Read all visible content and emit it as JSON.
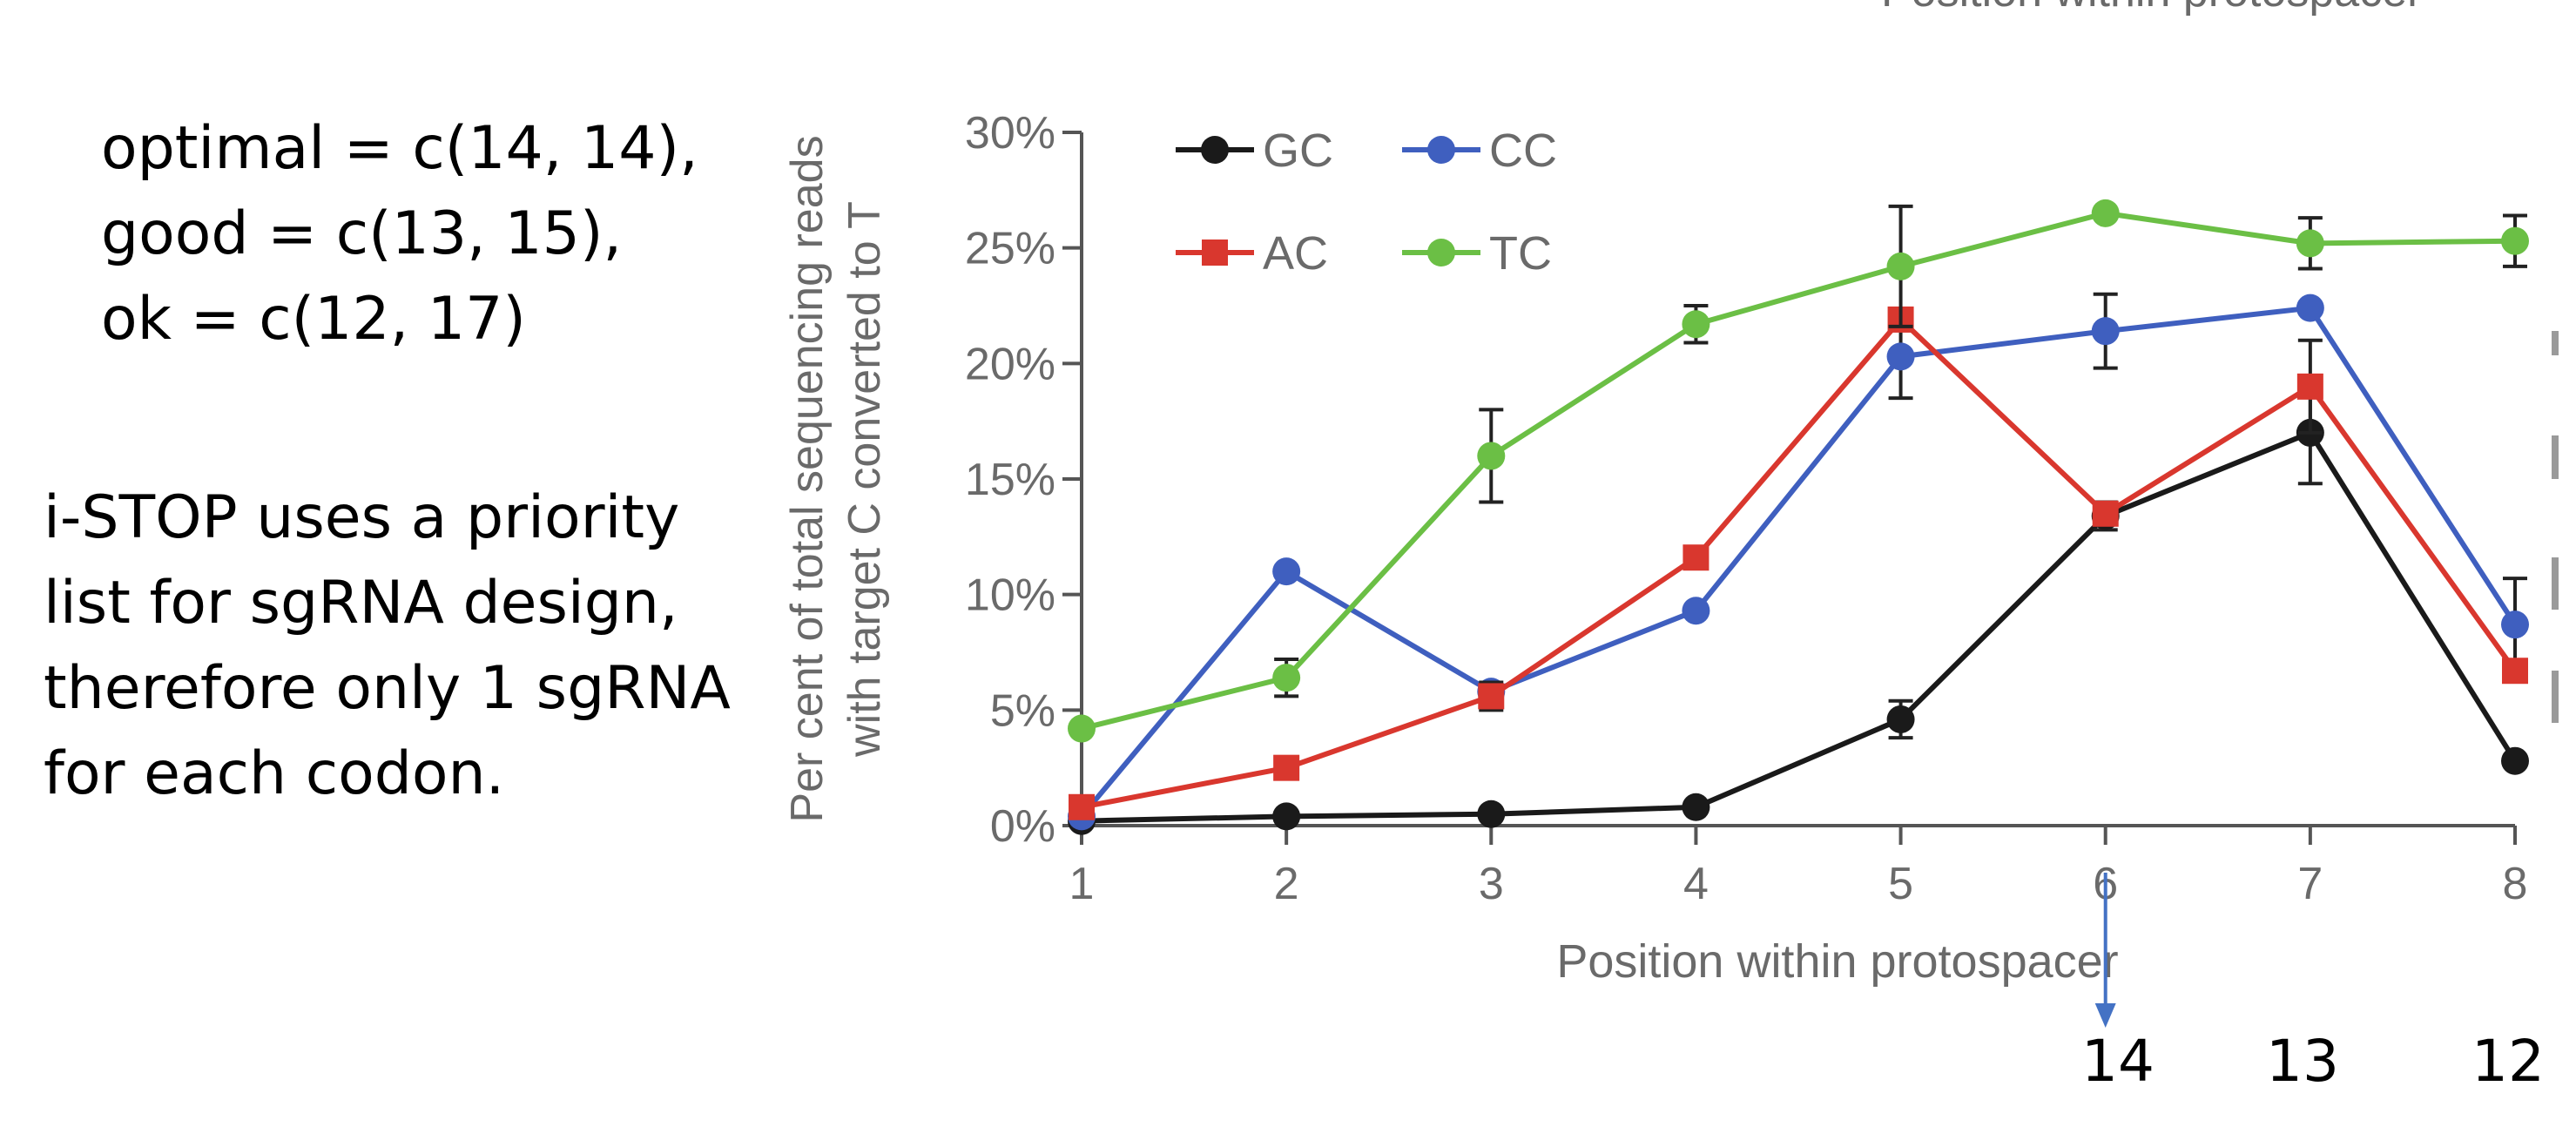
{
  "notes": {
    "code_lines": [
      "optimal = c(14, 14),",
      "good = c(13, 15),",
      "ok = c(12, 17)"
    ],
    "priority_lines": [
      "i-STOP uses a priority",
      "list for sgRNA design,",
      "therefore only 1 sgRNA",
      "for each codon."
    ]
  },
  "top_cut_text": "Position within protospacer",
  "bottom_numbers": [
    "14",
    "13",
    "12"
  ],
  "arrow_color": "#4472c4",
  "chart_data": {
    "type": "line",
    "x": [
      1,
      2,
      3,
      4,
      5,
      6,
      7,
      8
    ],
    "x_ticks": [
      "1",
      "2",
      "3",
      "4",
      "5",
      "6",
      "7",
      "8"
    ],
    "y_ticks": [
      "0%",
      "5%",
      "10%",
      "15%",
      "20%",
      "25%",
      "30%"
    ],
    "ylim": [
      0,
      30
    ],
    "xlabel": "Position within protospacer",
    "ylabel_lines": [
      "Per cent of total sequencing reads",
      "with target C converted to T"
    ],
    "legend_position": "top-left",
    "series": [
      {
        "name": "GC",
        "color": "#1a1a1a",
        "marker": "circle",
        "values": [
          0.2,
          0.4,
          0.5,
          0.8,
          4.6,
          13.4,
          17.0,
          2.8
        ],
        "errors": [
          0,
          0,
          0,
          0,
          0.8,
          0.6,
          2.2,
          0
        ]
      },
      {
        "name": "CC",
        "color": "#3f5fbf",
        "marker": "circle",
        "values": [
          0.4,
          11.0,
          5.8,
          9.3,
          20.3,
          21.4,
          22.4,
          8.7
        ],
        "errors": [
          0,
          0,
          0,
          0,
          1.8,
          1.6,
          0,
          2.0
        ]
      },
      {
        "name": "AC",
        "color": "#d9372e",
        "marker": "square",
        "values": [
          0.8,
          2.5,
          5.6,
          11.6,
          21.9,
          13.5,
          19.0,
          6.7
        ],
        "errors": [
          0,
          0,
          0.6,
          0,
          0,
          0,
          2.0,
          0
        ]
      },
      {
        "name": "TC",
        "color": "#6bbf45",
        "marker": "circle",
        "values": [
          4.2,
          6.4,
          16.0,
          21.7,
          24.2,
          26.5,
          25.2,
          25.3
        ],
        "errors": [
          0,
          0.8,
          2.0,
          0.8,
          2.6,
          0,
          1.1,
          1.1
        ]
      }
    ]
  }
}
